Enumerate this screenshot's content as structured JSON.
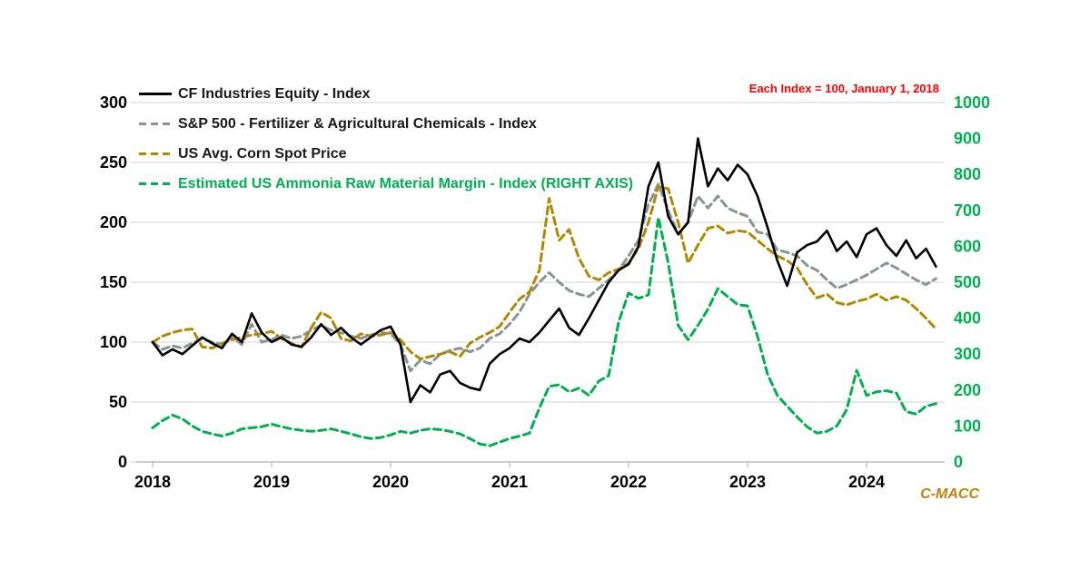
{
  "chart": {
    "annotation": "Each Index = 100, January 1, 2018",
    "annotation_color": "#FF0000",
    "watermark": "C-MACC",
    "watermark_color": "#B8860B",
    "background": "#FFFFFF",
    "gridline_color": "#D9D9D9",
    "axisline_color": "#BFBFBF",
    "legend": [
      {
        "label": "CF Industries Equity - Index",
        "color": "#000000",
        "text_color": "#1a1a1a",
        "dash": false
      },
      {
        "label": "S&P 500 - Fertilizer & Agricultural Chemicals - Index",
        "color": "#879690",
        "text_color": "#1a1a1a",
        "dash": true
      },
      {
        "label": "US Avg. Corn Spot Price",
        "color": "#B08900",
        "text_color": "#1a1a1a",
        "dash": true
      },
      {
        "label": "Estimated US Ammonia Raw Material Margin - Index (RIGHT AXIS)",
        "color": "#00B050",
        "text_color": "#00B050",
        "dash": true
      }
    ]
  },
  "chart_data": {
    "type": "line",
    "title": "",
    "xlabel": "",
    "ylabel_left": "",
    "ylabel_right": "",
    "grid": "horizontal",
    "legend_position": "top-left-inside",
    "x_mode": "decimal_year",
    "x_tick_labels": [
      "2018",
      "2019",
      "2020",
      "2021",
      "2022",
      "2023",
      "2024"
    ],
    "x_tick_values": [
      2018,
      2019,
      2020,
      2021,
      2022,
      2023,
      2024
    ],
    "left_axis": {
      "range": [
        0,
        300
      ],
      "ticks": [
        0,
        50,
        100,
        150,
        200,
        250,
        300
      ],
      "label_color": "#000000"
    },
    "right_axis": {
      "range": [
        0,
        1000
      ],
      "ticks": [
        0,
        100,
        200,
        300,
        400,
        500,
        600,
        700,
        800,
        900,
        1000
      ],
      "label_color": "#00B050"
    },
    "x": [
      2018.0,
      2018.083,
      2018.167,
      2018.25,
      2018.333,
      2018.417,
      2018.5,
      2018.583,
      2018.667,
      2018.75,
      2018.833,
      2018.917,
      2019.0,
      2019.083,
      2019.167,
      2019.25,
      2019.333,
      2019.417,
      2019.5,
      2019.583,
      2019.667,
      2019.75,
      2019.833,
      2019.917,
      2020.0,
      2020.083,
      2020.167,
      2020.25,
      2020.333,
      2020.417,
      2020.5,
      2020.583,
      2020.667,
      2020.75,
      2020.833,
      2020.917,
      2021.0,
      2021.083,
      2021.167,
      2021.25,
      2021.333,
      2021.417,
      2021.5,
      2021.583,
      2021.667,
      2021.75,
      2021.833,
      2021.917,
      2022.0,
      2022.083,
      2022.167,
      2022.25,
      2022.333,
      2022.417,
      2022.5,
      2022.583,
      2022.667,
      2022.75,
      2022.833,
      2022.917,
      2023.0,
      2023.083,
      2023.167,
      2023.25,
      2023.333,
      2023.417,
      2023.5,
      2023.583,
      2023.667,
      2023.75,
      2023.833,
      2023.917,
      2024.0,
      2024.083,
      2024.167,
      2024.25,
      2024.333,
      2024.417,
      2024.5,
      2024.583
    ],
    "series": [
      {
        "name": "CF Industries Equity - Index",
        "axis": "left",
        "color": "#000000",
        "dash": false,
        "width": 2.6,
        "values": [
          100,
          89,
          94,
          90,
          97,
          104,
          99,
          95,
          107,
          100,
          124,
          108,
          100,
          104,
          98,
          96,
          104,
          115,
          106,
          112,
          104,
          98,
          104,
          110,
          113,
          98,
          50,
          64,
          58,
          73,
          76,
          66,
          62,
          60,
          82,
          90,
          95,
          103,
          100,
          108,
          118,
          128,
          112,
          106,
          120,
          135,
          150,
          160,
          165,
          180,
          230,
          250,
          205,
          190,
          200,
          270,
          230,
          245,
          235,
          248,
          240,
          222,
          196,
          168,
          147,
          175,
          181,
          184,
          193,
          176,
          184,
          171,
          190,
          195,
          181,
          172,
          185,
          170,
          178,
          163
        ]
      },
      {
        "name": "S&P 500 - Fertilizer & Agricultural Chemicals - Index",
        "axis": "left",
        "color": "#879690",
        "dash": true,
        "width": 3,
        "values": [
          100,
          94,
          97,
          95,
          99,
          103,
          100,
          98,
          104,
          98,
          115,
          100,
          102,
          106,
          103,
          105,
          110,
          114,
          110,
          108,
          105,
          103,
          106,
          108,
          107,
          98,
          76,
          85,
          82,
          90,
          93,
          95,
          92,
          95,
          103,
          107,
          115,
          125,
          140,
          150,
          158,
          150,
          143,
          140,
          138,
          145,
          152,
          160,
          172,
          185,
          215,
          232,
          210,
          190,
          200,
          222,
          212,
          222,
          212,
          208,
          205,
          192,
          190,
          177,
          175,
          172,
          164,
          160,
          152,
          145,
          148,
          152,
          156,
          161,
          166,
          162,
          157,
          152,
          148,
          153
        ]
      },
      {
        "name": "US Avg. Corn Spot Price",
        "axis": "left",
        "color": "#B08900",
        "dash": true,
        "width": 3,
        "values": [
          100,
          105,
          108,
          110,
          111,
          96,
          95,
          99,
          102,
          104,
          106,
          107,
          109,
          103,
          99,
          96,
          112,
          125,
          120,
          103,
          101,
          107,
          105,
          106,
          108,
          102,
          92,
          86,
          88,
          90,
          92,
          88,
          99,
          104,
          108,
          113,
          125,
          136,
          142,
          160,
          220,
          185,
          194,
          170,
          155,
          152,
          158,
          161,
          166,
          178,
          200,
          230,
          228,
          200,
          166,
          181,
          195,
          197,
          191,
          193,
          192,
          185,
          178,
          172,
          168,
          162,
          148,
          137,
          140,
          133,
          131,
          134,
          136,
          140,
          135,
          138,
          135,
          128,
          120,
          111
        ]
      },
      {
        "name": "Estimated US Ammonia Raw Material Margin - Index (RIGHT AXIS)",
        "axis": "right",
        "color": "#00B050",
        "dash": true,
        "width": 3,
        "values": [
          95,
          115,
          130,
          120,
          100,
          85,
          78,
          72,
          80,
          92,
          95,
          98,
          105,
          98,
          92,
          88,
          85,
          88,
          92,
          85,
          78,
          70,
          65,
          68,
          75,
          85,
          80,
          88,
          92,
          90,
          85,
          78,
          65,
          50,
          45,
          55,
          65,
          72,
          80,
          150,
          210,
          215,
          195,
          205,
          185,
          225,
          240,
          390,
          470,
          455,
          465,
          680,
          555,
          380,
          340,
          380,
          425,
          482,
          460,
          438,
          434,
          350,
          245,
          185,
          155,
          125,
          98,
          80,
          85,
          100,
          145,
          255,
          185,
          195,
          198,
          192,
          140,
          133,
          155,
          162
        ]
      }
    ]
  }
}
